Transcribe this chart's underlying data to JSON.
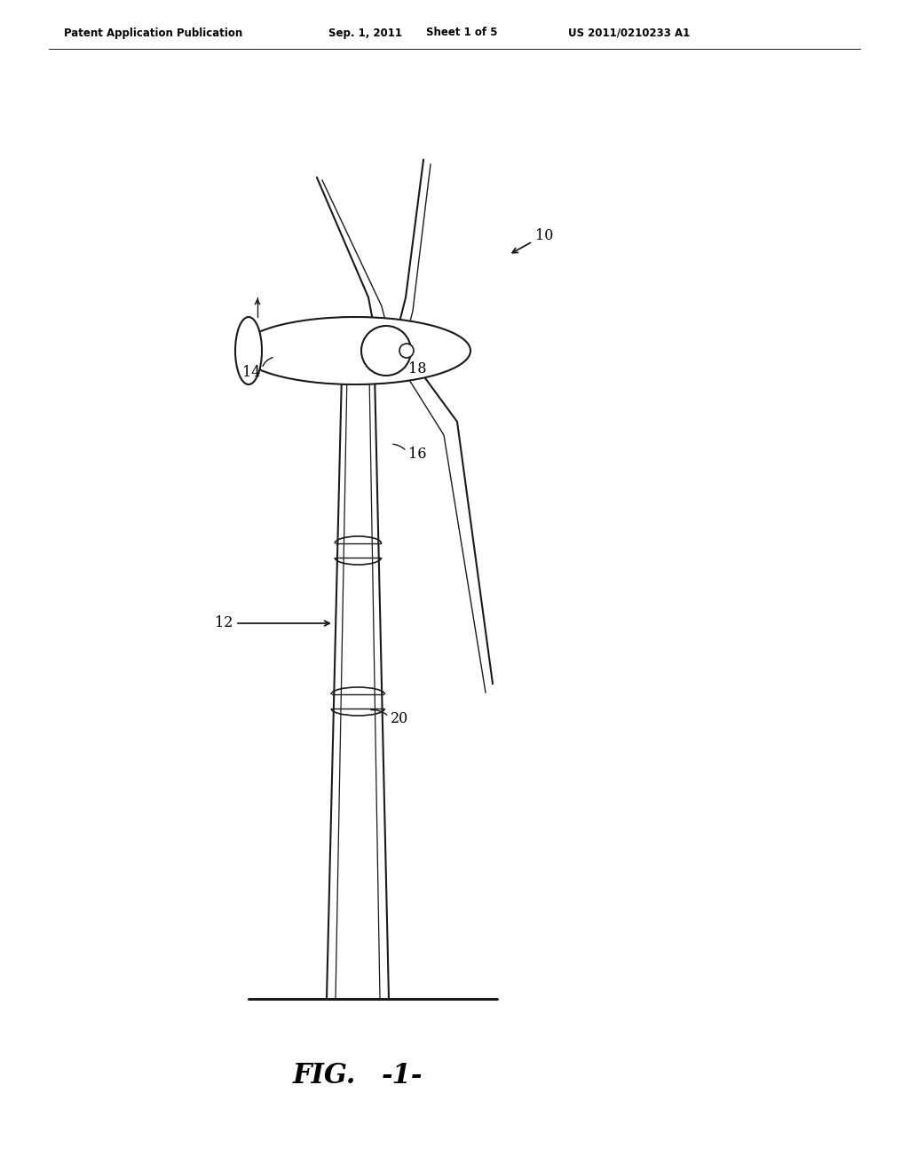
{
  "bg_color": "#ffffff",
  "header_text": "Patent Application Publication",
  "header_date": "Sep. 1, 2011",
  "header_sheet": "Sheet 1 of 5",
  "header_patent": "US 2011/0210233 A1",
  "fig_label": "FIG.",
  "fig_label2": "-1-",
  "label_10": "10",
  "label_12": "12",
  "label_14": "14",
  "label_16": "16",
  "label_18": "18",
  "label_20": "20",
  "line_color": "#1a1a1a",
  "text_color": "#000000"
}
